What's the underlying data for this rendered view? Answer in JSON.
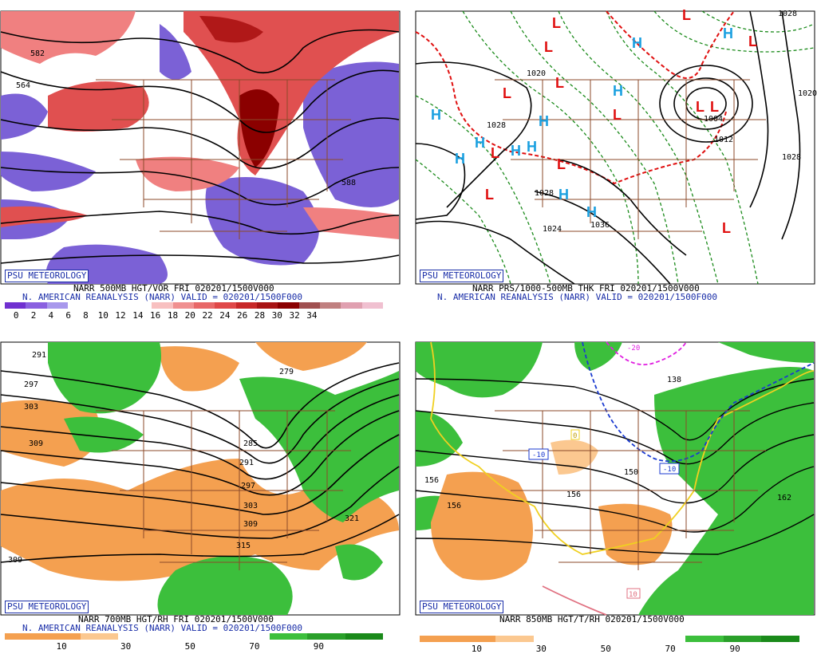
{
  "panels": [
    {
      "badge": "PSU METEOROLOGY",
      "caption_line1": "NARR 500MB HGT/VOR FRI 020201/1500V000",
      "caption_line2": "N. AMERICAN REANALYSIS (NARR) VALID = 020201/1500F000",
      "scale_ticks": [
        "0",
        "2",
        "4",
        "6",
        "8",
        "10",
        "12",
        "14",
        "16",
        "18",
        "20",
        "22",
        "24",
        "26",
        "28",
        "30",
        "32",
        "34"
      ],
      "contour_labels": [
        "582",
        "564",
        "588"
      ],
      "colors": {
        "negative": "#7b61d6",
        "positive": "#e05050",
        "strong": "#8b0000"
      }
    },
    {
      "badge": "PSU METEOROLOGY",
      "caption_line1": "NARR PRS/1000-500MB THK FRI 020201/1500V000",
      "caption_line2": "N. AMERICAN REANALYSIS (NARR) VALID = 020201/1500F000",
      "contour_labels": [
        "1020",
        "1028",
        "1036",
        "1028",
        "1024",
        "1004",
        "1012",
        "1028",
        "1020",
        "1028"
      ],
      "high_symbol": "H",
      "low_symbol": "L",
      "colors": {
        "high": "#1aa0e0",
        "low": "#e01010",
        "thickness": "#1a8a1a",
        "freezing": "#e01010"
      }
    },
    {
      "badge": "PSU METEOROLOGY",
      "caption_line1": "NARR 700MB HGT/RH FRI 020201/1500V000",
      "caption_line2": "N. AMERICAN REANALYSIS (NARR) VALID = 020201/1500F000",
      "scale_ticks": [
        "10",
        "30",
        "50",
        "70",
        "90"
      ],
      "contour_labels": [
        "291",
        "297",
        "303",
        "309",
        "279",
        "285",
        "291",
        "297",
        "303",
        "309",
        "315",
        "321",
        "309"
      ],
      "colors": {
        "dry": "#f4a050",
        "moist": "#3cbf3c"
      }
    },
    {
      "badge": "PSU METEOROLOGY",
      "caption_line1": "NARR 850MB HGT/T/RH 020201/1500V000",
      "scale_ticks": [
        "10",
        "30",
        "50",
        "70",
        "90"
      ],
      "contour_labels": [
        "156",
        "156",
        "150",
        "156",
        "162",
        "138"
      ],
      "temp_labels": [
        "-10",
        "-10",
        "-20",
        "10",
        "0"
      ],
      "colors": {
        "dry": "#f4a050",
        "moist": "#3cbf3c",
        "zero_isotherm": "#f0d020",
        "cold": "#1a3ad0",
        "very_cold": "#e020e0",
        "warm": "#e07080"
      }
    }
  ]
}
